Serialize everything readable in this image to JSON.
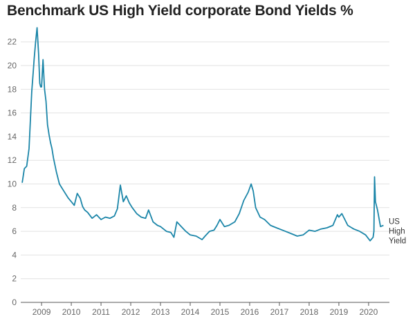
{
  "chart_data": {
    "type": "line",
    "title": "Benchmark US High Yield corporate Bond Yields %",
    "xlabel": "",
    "ylabel": "",
    "ylim": [
      0,
      23.5
    ],
    "xlim": [
      2008.3,
      2020.7
    ],
    "grid": true,
    "y_ticks": [
      0,
      2,
      4,
      6,
      8,
      10,
      12,
      14,
      16,
      18,
      20,
      22
    ],
    "x_ticks": [
      2009,
      2010,
      2011,
      2012,
      2013,
      2014,
      2015,
      2016,
      2017,
      2018,
      2019,
      2020
    ],
    "series": [
      {
        "name": "US High Yield",
        "color": "#1a85a8",
        "label_lines": [
          "US",
          "High",
          "Yield"
        ],
        "x": [
          2008.35,
          2008.42,
          2008.5,
          2008.58,
          2008.67,
          2008.72,
          2008.75,
          2008.8,
          2008.85,
          2008.9,
          2008.94,
          2008.97,
          2009.0,
          2009.05,
          2009.1,
          2009.15,
          2009.2,
          2009.25,
          2009.3,
          2009.35,
          2009.4,
          2009.5,
          2009.6,
          2009.75,
          2009.9,
          2010.0,
          2010.1,
          2010.2,
          2010.3,
          2010.38,
          2010.45,
          2010.55,
          2010.7,
          2010.85,
          2011.0,
          2011.15,
          2011.3,
          2011.45,
          2011.55,
          2011.65,
          2011.75,
          2011.85,
          2011.95,
          2012.05,
          2012.2,
          2012.35,
          2012.5,
          2012.6,
          2012.75,
          2012.9,
          2013.0,
          2013.2,
          2013.35,
          2013.45,
          2013.55,
          2013.7,
          2013.85,
          2014.0,
          2014.2,
          2014.4,
          2014.5,
          2014.65,
          2014.8,
          2014.9,
          2015.0,
          2015.15,
          2015.3,
          2015.5,
          2015.65,
          2015.8,
          2015.95,
          2016.05,
          2016.12,
          2016.2,
          2016.35,
          2016.5,
          2016.7,
          2016.9,
          2017.0,
          2017.2,
          2017.4,
          2017.6,
          2017.8,
          2018.0,
          2018.2,
          2018.4,
          2018.6,
          2018.8,
          2018.95,
          2019.0,
          2019.1,
          2019.3,
          2019.5,
          2019.7,
          2019.9,
          2020.05,
          2020.15,
          2020.18,
          2020.2,
          2020.23,
          2020.3,
          2020.4,
          2020.5
        ],
        "values": [
          10.1,
          11.3,
          11.5,
          13.0,
          17.8,
          19.5,
          20.5,
          22.0,
          23.2,
          21.0,
          18.5,
          18.2,
          18.2,
          20.5,
          18.0,
          17.0,
          15.0,
          14.2,
          13.5,
          13.0,
          12.2,
          11.0,
          10.0,
          9.4,
          8.8,
          8.5,
          8.2,
          9.2,
          8.8,
          8.1,
          7.8,
          7.6,
          7.1,
          7.4,
          7.0,
          7.2,
          7.1,
          7.3,
          7.9,
          9.9,
          8.5,
          9.0,
          8.4,
          8.0,
          7.5,
          7.2,
          7.1,
          7.8,
          6.8,
          6.5,
          6.4,
          6.0,
          5.9,
          5.5,
          6.8,
          6.4,
          6.0,
          5.7,
          5.6,
          5.3,
          5.6,
          6.0,
          6.1,
          6.5,
          7.0,
          6.4,
          6.5,
          6.8,
          7.5,
          8.6,
          9.3,
          10.0,
          9.4,
          8.0,
          7.2,
          7.0,
          6.5,
          6.3,
          6.2,
          6.0,
          5.8,
          5.6,
          5.7,
          6.1,
          6.0,
          6.2,
          6.3,
          6.5,
          7.4,
          7.2,
          7.5,
          6.5,
          6.2,
          6.0,
          5.7,
          5.2,
          5.5,
          6.0,
          10.6,
          8.5,
          7.8,
          6.4,
          6.5
        ]
      }
    ]
  }
}
